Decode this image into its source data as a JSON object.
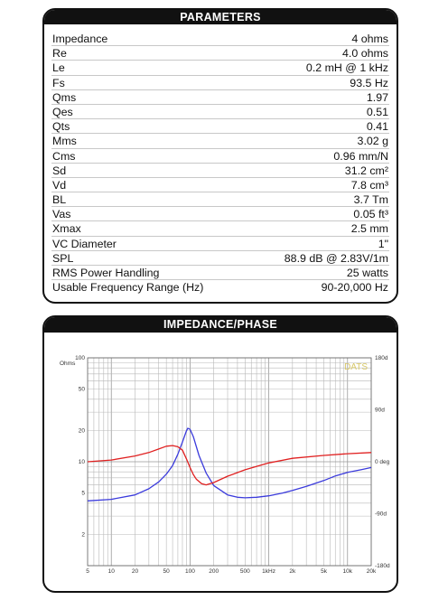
{
  "params_panel": {
    "title": "PARAMETERS",
    "rows": [
      {
        "label": "Impedance",
        "value": "4 ohms"
      },
      {
        "label": "Re",
        "value": "4.0 ohms"
      },
      {
        "label": "Le",
        "value": "0.2 mH @ 1 kHz"
      },
      {
        "label": "Fs",
        "value": "93.5 Hz"
      },
      {
        "label": "Qms",
        "value": "1.97"
      },
      {
        "label": "Qes",
        "value": "0.51"
      },
      {
        "label": "Qts",
        "value": "0.41"
      },
      {
        "label": "Mms",
        "value": "3.02 g"
      },
      {
        "label": "Cms",
        "value": "0.96 mm/N"
      },
      {
        "label": "Sd",
        "value": "31.2 cm²"
      },
      {
        "label": "Vd",
        "value": "7.8 cm³"
      },
      {
        "label": "BL",
        "value": "3.7 Tm"
      },
      {
        "label": "Vas",
        "value": "0.05 ft³"
      },
      {
        "label": "Xmax",
        "value": "2.5 mm"
      },
      {
        "label": "VC Diameter",
        "value": "1\""
      },
      {
        "label": "SPL",
        "value": "88.9 dB @ 2.83V/1m"
      },
      {
        "label": "RMS Power Handling",
        "value": "25 watts"
      },
      {
        "label": "Usable Frequency Range (Hz)",
        "value": "90-20,000 Hz"
      }
    ]
  },
  "chart_panel": {
    "title": "IMPEDANCE/PHASE"
  },
  "chart_data": {
    "type": "line",
    "title": "IMPEDANCE/PHASE",
    "xscale": "log",
    "yscale": "log",
    "xlim": [
      5,
      20000
    ],
    "ylim": [
      1,
      100
    ],
    "y2lim": [
      -180,
      180
    ],
    "x_ticks": [
      5,
      10,
      20,
      50,
      100,
      200,
      500,
      1000,
      2000,
      5000,
      10000,
      20000
    ],
    "x_tick_labels": [
      "5",
      "10",
      "20",
      "50",
      "100",
      "200",
      "500",
      "1kHz",
      "2k",
      "5k",
      "10k",
      "20k"
    ],
    "y_ticks": [
      2,
      5,
      10,
      20,
      50,
      100
    ],
    "y_tick_labels": [
      "2",
      "5",
      "10",
      "20",
      "50",
      "100"
    ],
    "y2_ticks": [
      180,
      90,
      0,
      -90,
      -180
    ],
    "y2_tick_labels": [
      "180d",
      "90d",
      "0 deg",
      "-90d",
      "-180d"
    ],
    "ylabel": "Ohms",
    "watermark": "DATS",
    "grid": true,
    "series": [
      {
        "axis": "left",
        "color": "#3b3bdc",
        "x": [
          5,
          10,
          20,
          30,
          40,
          50,
          60,
          70,
          80,
          90,
          93.5,
          100,
          110,
          130,
          160,
          200,
          300,
          400,
          500,
          700,
          1000,
          1500,
          2000,
          3000,
          5000,
          7000,
          10000,
          15000,
          20000
        ],
        "y": [
          4.2,
          4.35,
          4.8,
          5.5,
          6.4,
          7.6,
          9.2,
          11.8,
          15.5,
          19.8,
          21.0,
          20.5,
          17.5,
          11.5,
          7.8,
          5.9,
          4.8,
          4.55,
          4.5,
          4.55,
          4.7,
          5.0,
          5.3,
          5.8,
          6.6,
          7.3,
          7.9,
          8.4,
          8.8
        ]
      },
      {
        "axis": "right",
        "color": "#e02020",
        "x": [
          5,
          10,
          20,
          30,
          40,
          50,
          60,
          70,
          80,
          90,
          100,
          110,
          120,
          140,
          160,
          200,
          300,
          500,
          1000,
          2000,
          5000,
          10000,
          20000
        ],
        "y": [
          0,
          3,
          10,
          16,
          22,
          27,
          28,
          26,
          20,
          5,
          -10,
          -22,
          -30,
          -38,
          -40,
          -36,
          -25,
          -14,
          -2,
          6,
          11,
          14,
          16
        ]
      }
    ]
  }
}
